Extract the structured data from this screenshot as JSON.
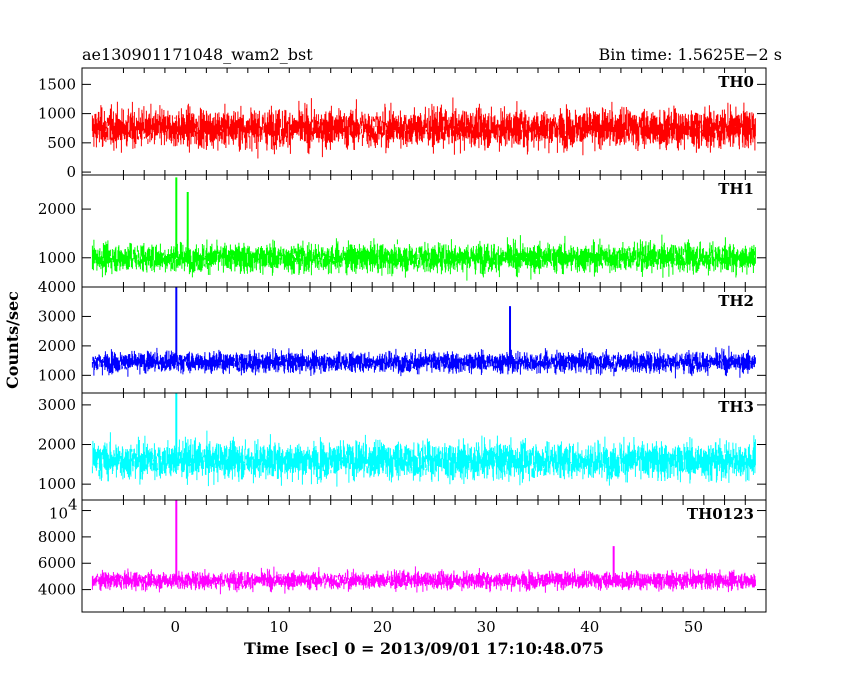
{
  "header": {
    "left_title": "ae130901171048_wam2_bst",
    "right_title": "Bin time: 1.5625E−2 s"
  },
  "chart_data": {
    "type": "line",
    "xlabel": "Time [sec] 0 = 2013/09/01 17:10:48.075",
    "ylabel": "Counts/sec",
    "xlim": [
      -9,
      57
    ],
    "x_ticks": [
      0,
      10,
      20,
      30,
      40,
      50
    ],
    "x_tick_labels": [
      "0",
      "10",
      "20",
      "30",
      "40",
      "50"
    ],
    "x_range_data": [
      -8,
      56
    ],
    "panels": [
      {
        "name": "TH0",
        "color": "#ff0000",
        "ylim": [
          -50,
          1780
        ],
        "yticks": [
          0,
          500,
          1000,
          1500
        ],
        "ytick_labels": [
          "0",
          "500",
          "1000",
          "1500"
        ],
        "mean": 750,
        "spread": 420,
        "spikes": []
      },
      {
        "name": "TH1",
        "color": "#00ff00",
        "ylim": [
          400,
          2700
        ],
        "yticks": [
          1000,
          2000
        ],
        "ytick_labels": [
          "1000",
          "2000"
        ],
        "mean": 1000,
        "spread": 380,
        "spikes": [
          {
            "x": 0.1,
            "y": 2650
          },
          {
            "x": 1.2,
            "y": 2350
          }
        ]
      },
      {
        "name": "TH2",
        "color": "#0000ff",
        "ylim": [
          400,
          4000
        ],
        "yticks": [
          1000,
          2000,
          3000,
          4000
        ],
        "ytick_labels": [
          "1000",
          "2000",
          "3000",
          "4000"
        ],
        "mean": 1450,
        "spread": 450,
        "spikes": [
          {
            "x": 0.1,
            "y": 4000
          },
          {
            "x": 32.3,
            "y": 3350
          }
        ]
      },
      {
        "name": "TH3",
        "color": "#00ffff",
        "ylim": [
          600,
          3300
        ],
        "yticks": [
          1000,
          2000,
          3000
        ],
        "ytick_labels": [
          "1000",
          "2000",
          "3000"
        ],
        "mean": 1600,
        "spread": 600,
        "spikes": [
          {
            "x": 0.1,
            "y": 3300
          }
        ]
      },
      {
        "name": "TH0123",
        "color": "#ff00ff",
        "ylim": [
          2300,
          10800
        ],
        "yticks": [
          4000,
          6000,
          8000,
          10000
        ],
        "ytick_labels": [
          "4000",
          "6000",
          "8000",
          ""
        ],
        "top_tick_mantissa": "10",
        "top_tick_exponent": "4",
        "mean": 4700,
        "spread": 850,
        "spikes": [
          {
            "x": 0.1,
            "y": 10800
          },
          {
            "x": 42.3,
            "y": 7300
          }
        ]
      }
    ]
  }
}
